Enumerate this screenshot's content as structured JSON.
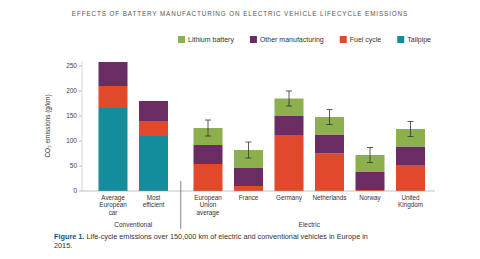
{
  "chart_data": {
    "type": "bar",
    "stacked": true,
    "title": "EFFECTS OF BATTERY MANUFACTURING ON ELECTRIC VEHICLE LIFECYCLE EMISSIONS",
    "y_label": "CO₂ emissions (g/km)",
    "caption": "Figure 1. Life-cycle emissions over 150,000 km of electric and conventional vehicles in Europe in 2015.",
    "categories": [
      "Average European car",
      "Most efficient",
      "European Union average",
      "France",
      "Germany",
      "Netherlands",
      "Norway",
      "United Kingdom"
    ],
    "groups": [
      {
        "label": "Conventional",
        "count": 2
      },
      {
        "label": "Electric",
        "count": 6
      }
    ],
    "series": [
      {
        "name": "Lithium battery",
        "color": "#8cb04c",
        "values": [
          0,
          0,
          34,
          36,
          35,
          35,
          34,
          35
        ]
      },
      {
        "name": "Other manufacturing",
        "color": "#6b2c64",
        "values": [
          48,
          40,
          38,
          36,
          38,
          38,
          36,
          37
        ]
      },
      {
        "name": "Fuel cycle",
        "color": "#e2492b",
        "values": [
          44,
          30,
          54,
          10,
          112,
          75,
          2,
          52
        ]
      },
      {
        "name": "Tailpipe",
        "color": "#138c9b",
        "values": [
          166,
          110,
          0,
          0,
          0,
          0,
          0,
          0
        ]
      }
    ],
    "errors": [
      null,
      null,
      16,
      16,
      15,
      15,
      15,
      15
    ],
    "ylim": [
      0,
      260
    ],
    "yticks": [
      0,
      50,
      100,
      150,
      200,
      250
    ],
    "grid": false,
    "legend": "top"
  }
}
